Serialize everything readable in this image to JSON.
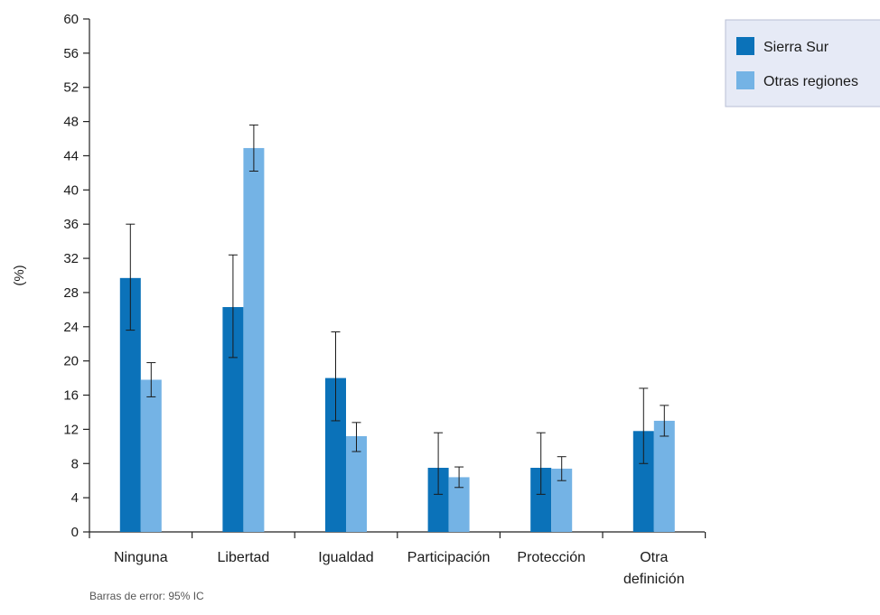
{
  "chart_data": {
    "type": "bar",
    "categories": [
      [
        "Ninguna"
      ],
      [
        "Libertad"
      ],
      [
        "Igualdad"
      ],
      [
        "Participación"
      ],
      [
        "Protección"
      ],
      [
        "Otra",
        "definición"
      ]
    ],
    "series": [
      {
        "name": "Sierra Sur",
        "color": "#0b72b9",
        "values": [
          29.7,
          26.3,
          18.0,
          7.5,
          7.5,
          11.8
        ],
        "ci_low": [
          23.6,
          20.4,
          13.0,
          4.4,
          4.4,
          8.0
        ],
        "ci_high": [
          36.0,
          32.4,
          23.4,
          11.6,
          11.6,
          16.8
        ]
      },
      {
        "name": "Otras regiones",
        "color": "#74b3e5",
        "values": [
          17.8,
          44.9,
          11.2,
          6.4,
          7.4,
          13.0
        ],
        "ci_low": [
          15.8,
          42.2,
          9.4,
          5.2,
          6.0,
          11.2
        ],
        "ci_high": [
          19.8,
          47.6,
          12.8,
          7.6,
          8.8,
          14.8
        ]
      }
    ],
    "ylabel": "(%)",
    "ylim": [
      0,
      60
    ],
    "yticks": [
      0,
      4,
      8,
      12,
      16,
      20,
      24,
      28,
      32,
      36,
      40,
      44,
      48,
      52,
      56,
      60
    ],
    "grid": false,
    "legend_position": "top-right",
    "note": "Barras de error: 95% IC"
  }
}
